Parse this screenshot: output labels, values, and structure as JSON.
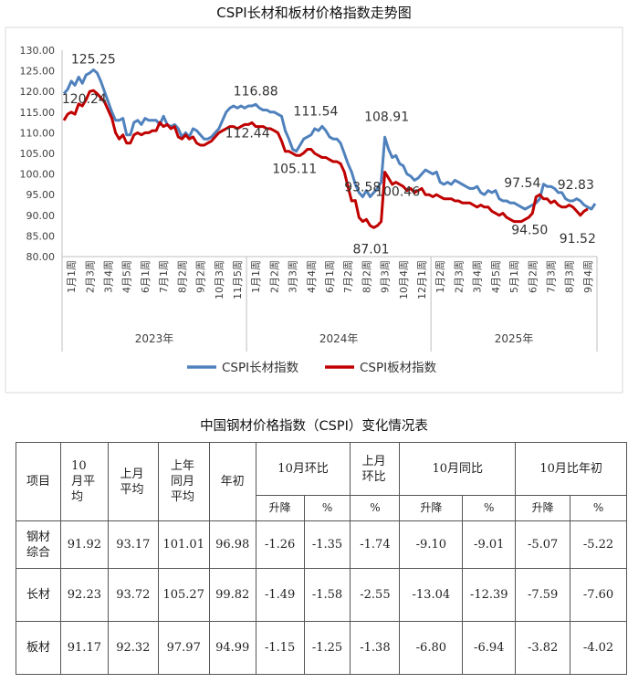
{
  "chart_data": {
    "type": "line",
    "title": "CSPI长材和板材价格指数走势图",
    "ylim": [
      80,
      130
    ],
    "yticks": [
      "80.00",
      "85.00",
      "90.00",
      "95.00",
      "100.00",
      "105.00",
      "110.00",
      "115.00",
      "120.00",
      "125.00",
      "130.00"
    ],
    "xtick_labels": [
      "1月1周",
      "2月3周",
      "3月4周",
      "4月5周",
      "6月1周",
      "7月1周",
      "8月2周",
      "9月2周",
      "10月3周",
      "11月5周",
      "1月1周",
      "2月2周",
      "3月3周",
      "4月4周",
      "6月1周",
      "7月2周",
      "8月2周",
      "9月3周",
      "10月4周",
      "12月1周",
      "1月2周",
      "2月3周",
      "3月4周",
      "4月5周",
      "5月1周",
      "6月2周",
      "7月3周",
      "8月3周",
      "9月4周"
    ],
    "year_groups": [
      "2023年",
      "2024年",
      "2025年"
    ],
    "series": [
      {
        "name": "CSPI长材指数",
        "color": "#4f81bd",
        "values": [
          119.5,
          120.5,
          122.5,
          121.5,
          123.5,
          122.0,
          124.0,
          124.5,
          125.25,
          124.5,
          122.5,
          120.0,
          117.5,
          115.0,
          113.0,
          113.0,
          113.5,
          109.5,
          109.5,
          112.5,
          113.0,
          112.0,
          113.5,
          113.0,
          113.0,
          113.0,
          112.0,
          114.0,
          112.0,
          111.5,
          112.0,
          111.0,
          109.0,
          110.0,
          109.0,
          111.0,
          110.5,
          109.5,
          108.5,
          108.5,
          109.0,
          110.0,
          111.0,
          113.0,
          115.0,
          116.0,
          116.5,
          116.0,
          116.5,
          116.0,
          116.5,
          116.5,
          116.88,
          116.0,
          115.5,
          115.5,
          115.0,
          115.0,
          114.5,
          114.0,
          110.5,
          108.5,
          106.0,
          105.5,
          107.0,
          108.5,
          109.0,
          109.5,
          111.0,
          110.5,
          111.54,
          110.5,
          109.0,
          108.5,
          108.5,
          107.5,
          105.0,
          102.5,
          100.5,
          97.5,
          95.5,
          94.5,
          96.0,
          94.5,
          95.5,
          96.5,
          98.0,
          108.91,
          106.0,
          104.0,
          104.5,
          102.5,
          102.0,
          100.0,
          99.5,
          98.5,
          99.0,
          100.0,
          101.0,
          100.5,
          100.0,
          100.5,
          98.0,
          97.5,
          98.0,
          97.5,
          98.5,
          98.0,
          97.5,
          97.0,
          96.5,
          96.5,
          97.0,
          95.5,
          95.0,
          96.0,
          95.5,
          96.0,
          94.0,
          93.5,
          93.5,
          93.0,
          93.0,
          92.5,
          92.0,
          91.5,
          92.0,
          92.5,
          93.0,
          94.0,
          97.54,
          97.0,
          97.0,
          96.5,
          95.5,
          95.5,
          94.0,
          93.5,
          93.5,
          94.0,
          93.5,
          92.5,
          92.0,
          91.5,
          92.83
        ]
      },
      {
        "name": "CSPI板材指数",
        "color": "#c00000",
        "values": [
          113.0,
          114.5,
          115.0,
          114.5,
          117.0,
          116.5,
          118.0,
          120.0,
          120.24,
          119.5,
          118.5,
          117.5,
          115.5,
          113.5,
          110.0,
          108.5,
          109.5,
          107.5,
          107.5,
          109.5,
          110.0,
          109.5,
          110.0,
          110.0,
          110.5,
          110.5,
          112.5,
          111.5,
          112.0,
          111.0,
          111.5,
          109.0,
          108.5,
          109.5,
          108.5,
          109.0,
          107.5,
          107.0,
          107.0,
          107.5,
          108.0,
          109.0,
          110.0,
          110.5,
          111.0,
          111.5,
          111.5,
          111.0,
          111.5,
          112.0,
          112.0,
          112.44,
          111.5,
          111.5,
          111.5,
          111.0,
          111.0,
          110.5,
          110.0,
          108.0,
          105.5,
          105.5,
          105.0,
          104.5,
          104.5,
          105.11,
          106.0,
          106.0,
          105.0,
          104.5,
          104.0,
          104.0,
          103.5,
          103.0,
          103.0,
          102.5,
          100.5,
          97.0,
          93.5,
          93.58,
          89.5,
          88.5,
          89.0,
          87.5,
          87.01,
          87.5,
          88.5,
          100.46,
          99.0,
          97.5,
          98.0,
          97.5,
          97.0,
          96.0,
          96.5,
          95.5,
          96.0,
          96.5,
          95.0,
          95.0,
          94.5,
          95.0,
          94.5,
          94.0,
          94.0,
          94.0,
          93.5,
          93.5,
          93.0,
          93.0,
          93.0,
          92.5,
          92.0,
          92.5,
          92.0,
          92.0,
          91.0,
          90.5,
          90.0,
          90.5,
          89.5,
          89.0,
          88.5,
          88.5,
          88.5,
          89.0,
          89.5,
          90.5,
          94.5,
          95.0,
          94.0,
          94.0,
          93.0,
          93.5,
          92.5,
          92.0,
          92.0,
          92.5,
          92.0,
          91.0,
          90.0,
          91.0,
          91.52
        ]
      }
    ],
    "annotations": [
      {
        "series": 0,
        "index": 8,
        "text": "125.25"
      },
      {
        "series": 1,
        "index": 8,
        "text": "120.24"
      },
      {
        "series": 0,
        "index": 52,
        "text": "116.88"
      },
      {
        "series": 1,
        "index": 51,
        "text": "112.44"
      },
      {
        "series": 0,
        "index": 70,
        "text": "111.54"
      },
      {
        "series": 1,
        "index": 65,
        "text": "105.11"
      },
      {
        "series": 0,
        "index": 87,
        "text": "108.91"
      },
      {
        "series": 1,
        "index": 79,
        "text": "93.58"
      },
      {
        "series": 1,
        "index": 87,
        "text": "100.46"
      },
      {
        "series": 1,
        "index": 84,
        "text": "87.01"
      },
      {
        "series": 0,
        "index": 128,
        "text": "97.54"
      },
      {
        "series": 1,
        "index": 127,
        "text": "94.50"
      },
      {
        "series": 0,
        "index": 140,
        "text": "92.83"
      },
      {
        "series": 1,
        "index": 140,
        "text": "91.52"
      }
    ],
    "grid": false,
    "legend": "bottom"
  },
  "table": {
    "title": "中国钢材价格指数（CSPI）变化情况表",
    "headers": {
      "item": "项目",
      "oct_avg": "10月平均",
      "prev_month_avg": "上月平均",
      "last_year_same_month_avg": "上年同月平均",
      "year_start": "年初",
      "mom": "10月环比",
      "prev_mom": "上月环比",
      "yoy": "10月同比",
      "vs_year_start": "10月比年初",
      "change": "升降",
      "pct": "%"
    },
    "rows": [
      {
        "name": "钢材综合",
        "values": [
          "91.92",
          "93.17",
          "101.01",
          "96.98",
          "-1.26",
          "-1.35",
          "-1.74",
          "-9.10",
          "-9.01",
          "-5.07",
          "-5.22"
        ]
      },
      {
        "name": "长材",
        "values": [
          "92.23",
          "93.72",
          "105.27",
          "99.82",
          "-1.49",
          "-1.58",
          "-2.55",
          "-13.04",
          "-12.39",
          "-7.59",
          "-7.60"
        ]
      },
      {
        "name": "板材",
        "values": [
          "91.17",
          "92.32",
          "97.97",
          "94.99",
          "-1.15",
          "-1.25",
          "-1.38",
          "-6.80",
          "-6.94",
          "-3.82",
          "-4.02"
        ]
      }
    ]
  }
}
